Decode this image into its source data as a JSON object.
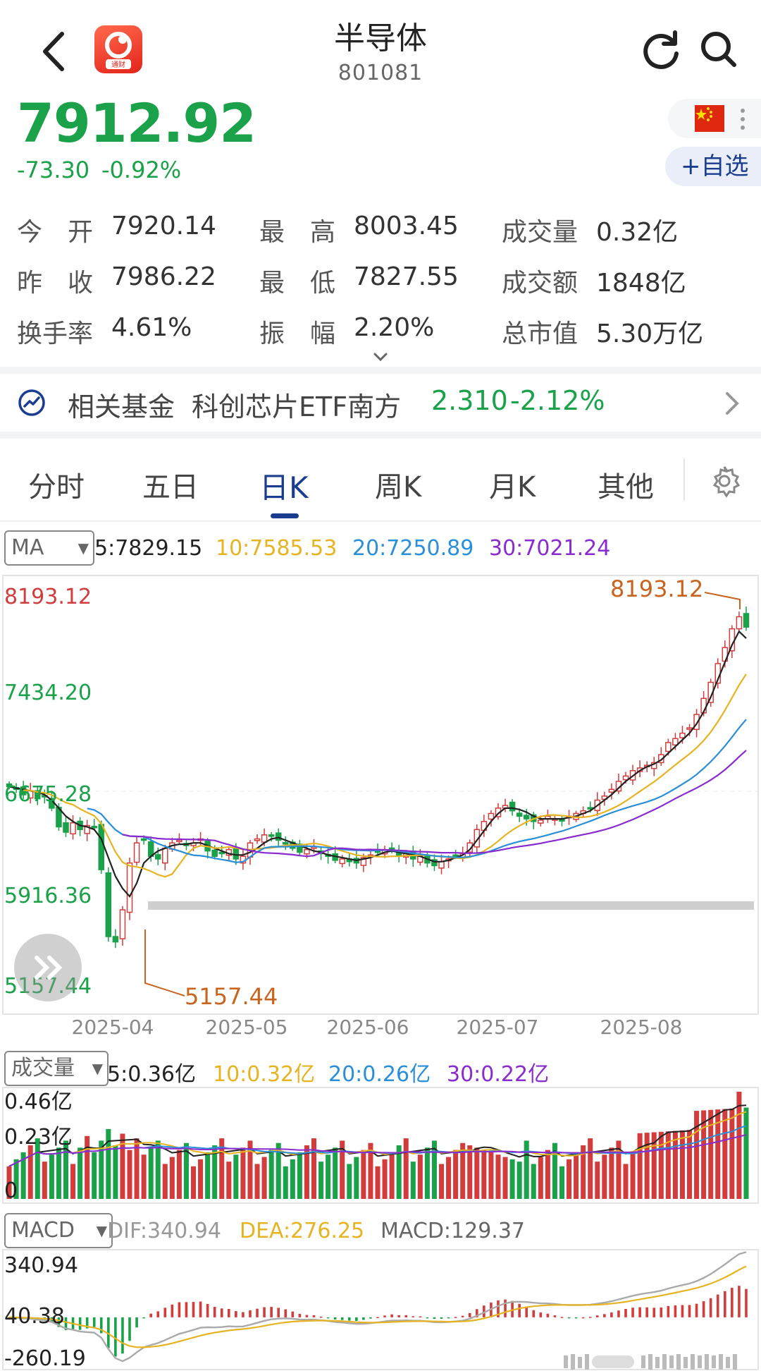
{
  "header": {
    "title": "半导体",
    "code": "801081",
    "app_logo_text": "通财"
  },
  "quote": {
    "price": "7912.92",
    "change": "-73.30",
    "change_pct": "-0.92%",
    "add_fav": "+自选"
  },
  "stats": [
    {
      "label": "今　开",
      "value": "7920.14"
    },
    {
      "label": "最　高",
      "value": "8003.45"
    },
    {
      "label": "成交量",
      "value": "0.32亿"
    },
    {
      "label": "昨　收",
      "value": "7986.22"
    },
    {
      "label": "最　低",
      "value": "7827.55"
    },
    {
      "label": "成交额",
      "value": "1848亿"
    },
    {
      "label": "换手率",
      "value": "4.61%"
    },
    {
      "label": "振　幅",
      "value": "2.20%"
    },
    {
      "label": "总市值",
      "value": "5.30万亿"
    }
  ],
  "fund": {
    "label": "相关基金",
    "name": "科创芯片ETF南方",
    "price": "2.310",
    "change": "-2.12%"
  },
  "tabs": [
    "分时",
    "五日",
    "日K",
    "周K",
    "月K",
    "其他"
  ],
  "active_tab": "日K",
  "ma_legend": {
    "selector": "MA",
    "ma5": "5:7829.15",
    "ma10": "10:7585.53",
    "ma20": "20:7250.89",
    "ma30": "30:7021.24"
  },
  "vol_legend": {
    "selector": "成交量",
    "ma5": "5:0.36亿",
    "ma10": "10:0.32亿",
    "ma20": "20:0.26亿",
    "ma30": "30:0.22亿"
  },
  "macd_legend": {
    "selector": "MACD",
    "dif": "DIF:340.94",
    "dea": "DEA:276.25",
    "macd": "MACD:129.37"
  },
  "colors": {
    "up": "#d23c3c",
    "down": "#1aa14a",
    "ma5": "#222222",
    "ma10": "#e6b422",
    "ma20": "#2a8fd6",
    "ma30": "#8a2bd0",
    "annotation": "#c8641e",
    "brand": "#1b3d8f"
  },
  "chart_data": [
    {
      "type": "candlestick",
      "title": "",
      "y_ticks": [
        "8193.12",
        "7434.20",
        "6675.28",
        "5916.36",
        "5157.44"
      ],
      "ylim": [
        5157.44,
        8193.12
      ],
      "x_ticks": [
        "2025-04",
        "2025-05",
        "2025-06",
        "2025-07",
        "2025-08"
      ],
      "annotations": {
        "high": "8193.12",
        "low": "5157.44"
      },
      "close": [
        6720,
        6700,
        6660,
        6690,
        6630,
        6650,
        6560,
        6420,
        6380,
        6450,
        6400,
        6430,
        6420,
        6100,
        5600,
        5560,
        5800,
        6150,
        6300,
        6320,
        6200,
        6180,
        6260,
        6300,
        6320,
        6280,
        6300,
        6330,
        6240,
        6200,
        6220,
        6250,
        6180,
        6200,
        6300,
        6330,
        6360,
        6350,
        6320,
        6300,
        6260,
        6230,
        6250,
        6270,
        6220,
        6200,
        6170,
        6180,
        6160,
        6150,
        6190,
        6210,
        6230,
        6250,
        6260,
        6200,
        6220,
        6180,
        6200,
        6150,
        6130,
        6160,
        6180,
        6200,
        6220,
        6300,
        6400,
        6460,
        6520,
        6560,
        6580,
        6540,
        6500,
        6480,
        6460,
        6470,
        6500,
        6480,
        6470,
        6500,
        6520,
        6540,
        6560,
        6620,
        6650,
        6700,
        6760,
        6800,
        6840,
        6860,
        6880,
        6900,
        6960,
        7050,
        7080,
        7120,
        7160,
        7260,
        7380,
        7500,
        7640,
        7760,
        7900,
        7990,
        7913
      ],
      "ma5": [
        6720,
        6710,
        6700,
        6690,
        6680,
        6660,
        6620,
        6560,
        6500,
        6460,
        6430,
        6420,
        6400,
        6330,
        6190,
        6050,
        5960,
        5900,
        6000,
        6150,
        6200,
        6240,
        6260,
        6280,
        6290,
        6290,
        6300,
        6300,
        6280,
        6260,
        6240,
        6220,
        6210,
        6210,
        6230,
        6260,
        6300,
        6330,
        6340,
        6320,
        6300,
        6280,
        6260,
        6240,
        6230,
        6210,
        6200,
        6190,
        6180,
        6170,
        6180,
        6190,
        6210,
        6230,
        6240,
        6230,
        6220,
        6210,
        6200,
        6180,
        6160,
        6160,
        6170,
        6190,
        6210,
        6250,
        6320,
        6390,
        6460,
        6520,
        6560,
        6560,
        6550,
        6530,
        6500,
        6480,
        6480,
        6480,
        6480,
        6490,
        6500,
        6520,
        6540,
        6580,
        6620,
        6660,
        6710,
        6760,
        6800,
        6840,
        6870,
        6890,
        6920,
        6970,
        7020,
        7070,
        7120,
        7190,
        7280,
        7390,
        7520,
        7650,
        7780,
        7880,
        7829
      ]
    },
    {
      "type": "bar",
      "title": "成交量",
      "y_ticks": [
        "0.46亿",
        "0.23亿",
        "0"
      ],
      "ylim": [
        0,
        0.46
      ],
      "unit": "亿"
    },
    {
      "type": "bar",
      "title": "MACD",
      "y_ticks": [
        "340.94",
        "40.38",
        "-260.19"
      ],
      "ylim": [
        -260.19,
        340.94
      ]
    }
  ]
}
